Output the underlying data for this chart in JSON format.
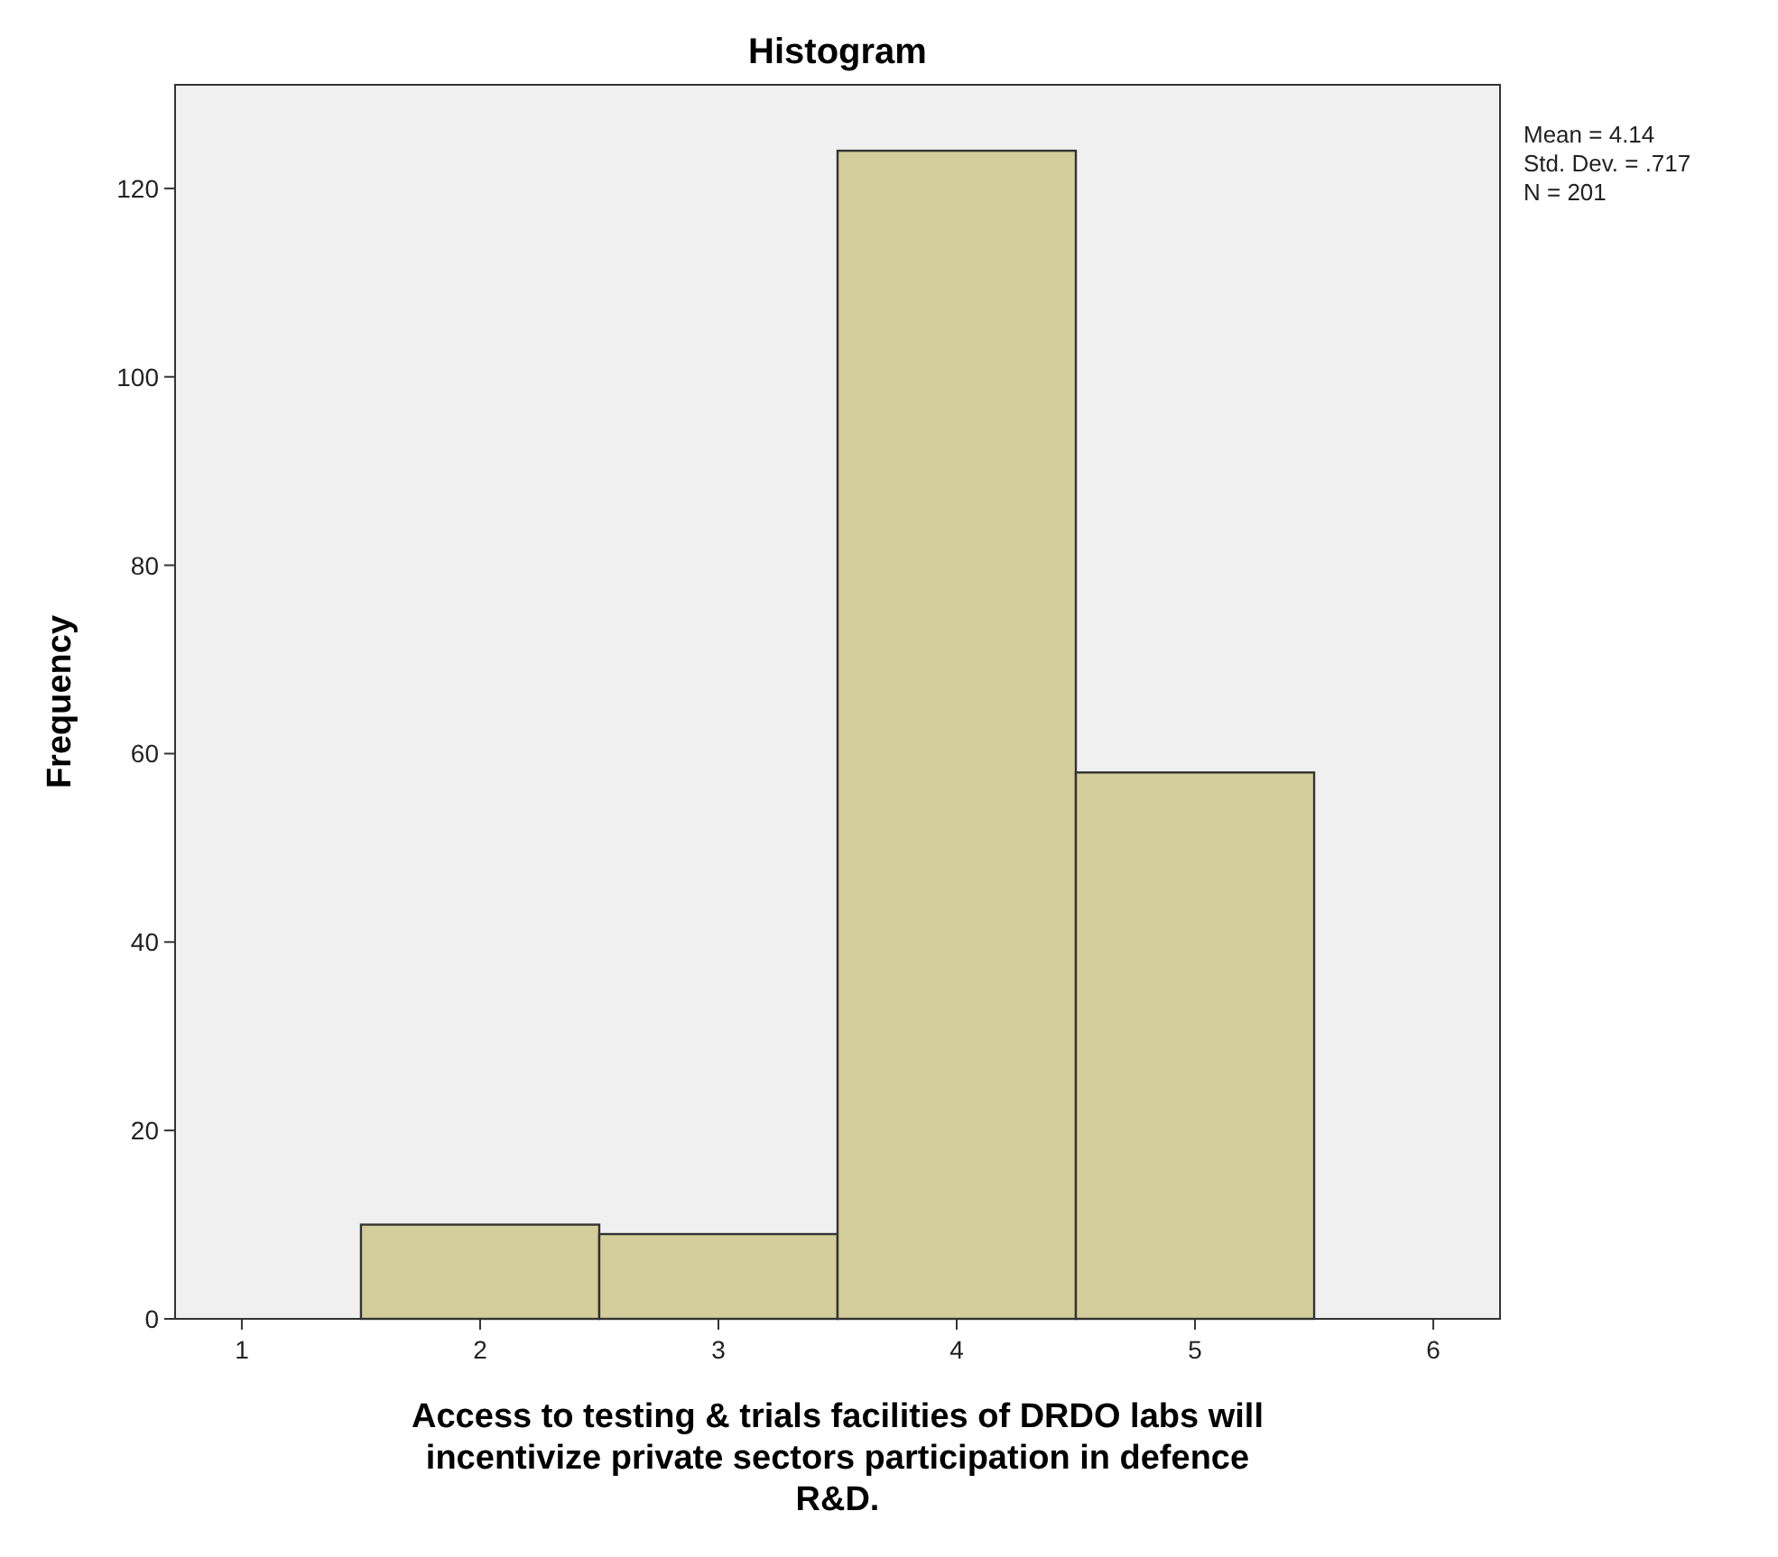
{
  "chart_data": {
    "type": "histogram",
    "title": "Histogram",
    "xlabel": "Access to testing & trials facilities of DRDO labs will incentivize private sectors participation in defence R&D.",
    "ylabel": "Frequency",
    "bins": [
      1.5,
      2.5,
      3.5,
      4.5,
      5.5
    ],
    "values": [
      10,
      9,
      124,
      58
    ],
    "color": "#d3ce9b",
    "xlim": [
      0.72,
      6.28
    ],
    "xticks": [
      1,
      2,
      3,
      4,
      5,
      6
    ],
    "ylim": [
      0,
      131
    ],
    "yticks": [
      0,
      20,
      40,
      60,
      80,
      100,
      120
    ],
    "grid": false,
    "annotations": [
      "Mean = 4.14",
      "Std. Dev. = .717",
      "N = 201"
    ]
  }
}
